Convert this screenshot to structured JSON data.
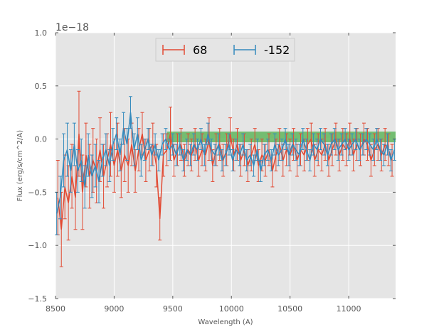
{
  "chart_data": {
    "type": "line",
    "title": "",
    "xlabel": "Wavelength (A)",
    "ylabel": "Flux (erg/s/cm^2/A)",
    "offset_text": "1e−18",
    "xlim": [
      8500,
      11400
    ],
    "ylim": [
      -1.5,
      1.0
    ],
    "scale": 1e-18,
    "grid": true,
    "legend_position": "top-center",
    "xticks": [
      8500,
      9000,
      9500,
      10000,
      10500,
      11000
    ],
    "xtick_labels": [
      "8500",
      "9000",
      "9500",
      "10000",
      "10500",
      "11000"
    ],
    "yticks": [
      -1.5,
      -1.0,
      -0.5,
      0.0,
      0.5,
      1.0
    ],
    "ytick_labels": [
      "−1.5",
      "−1.0",
      "−0.5",
      "0.0",
      "0.5",
      "1.0"
    ],
    "band": {
      "x_start": 9450,
      "x_end": 11400,
      "y_low": -0.03,
      "y_high": 0.07,
      "color": "#4daf4a"
    },
    "series": [
      {
        "name": "68",
        "color": "#e24a33",
        "x": [
          8520,
          8550,
          8580,
          8610,
          8640,
          8670,
          8700,
          8730,
          8760,
          8790,
          8820,
          8850,
          8880,
          8910,
          8940,
          8970,
          9000,
          9030,
          9060,
          9090,
          9120,
          9150,
          9180,
          9210,
          9240,
          9270,
          9300,
          9330,
          9360,
          9390,
          9420,
          9450,
          9480,
          9510,
          9540,
          9570,
          9600,
          9630,
          9660,
          9690,
          9720,
          9750,
          9780,
          9810,
          9840,
          9870,
          9900,
          9930,
          9960,
          9990,
          10020,
          10050,
          10080,
          10110,
          10140,
          10170,
          10200,
          10230,
          10260,
          10290,
          10320,
          10350,
          10380,
          10410,
          10440,
          10470,
          10500,
          10530,
          10560,
          10590,
          10620,
          10650,
          10680,
          10710,
          10740,
          10770,
          10800,
          10830,
          10860,
          10890,
          10920,
          10950,
          10980,
          11010,
          11040,
          11070,
          11100,
          11130,
          11160,
          11190,
          11220,
          11250,
          11280,
          11310,
          11340,
          11370
        ],
        "y": [
          -0.55,
          -0.85,
          -0.45,
          -0.6,
          -0.35,
          -0.55,
          0.05,
          -0.5,
          -0.15,
          -0.35,
          -0.2,
          -0.3,
          -0.1,
          -0.35,
          -0.2,
          -0.05,
          -0.25,
          -0.1,
          -0.3,
          -0.15,
          -0.25,
          -0.05,
          -0.3,
          -0.1,
          0.05,
          -0.2,
          -0.1,
          -0.05,
          -0.25,
          -0.75,
          -0.15,
          -0.1,
          0.05,
          -0.2,
          -0.1,
          -0.05,
          -0.2,
          -0.1,
          -0.15,
          -0.05,
          -0.2,
          -0.1,
          -0.15,
          0.0,
          -0.25,
          -0.1,
          -0.05,
          -0.2,
          -0.1,
          0.05,
          -0.15,
          -0.05,
          -0.2,
          -0.1,
          -0.25,
          -0.15,
          -0.05,
          -0.25,
          -0.15,
          -0.2,
          -0.1,
          -0.3,
          -0.15,
          -0.05,
          -0.2,
          -0.1,
          -0.15,
          -0.05,
          -0.2,
          -0.1,
          -0.15,
          -0.05,
          0.0,
          -0.2,
          -0.1,
          -0.15,
          -0.05,
          -0.2,
          -0.1,
          0.0,
          -0.15,
          -0.05,
          -0.1,
          0.0,
          -0.15,
          -0.05,
          -0.1,
          0.0,
          -0.05,
          -0.2,
          -0.1,
          -0.05,
          -0.15,
          -0.05,
          -0.1,
          -0.2
        ],
        "err": [
          0.35,
          0.35,
          0.3,
          0.35,
          0.3,
          0.3,
          0.4,
          0.35,
          0.3,
          0.3,
          0.3,
          0.3,
          0.3,
          0.3,
          0.25,
          0.3,
          0.25,
          0.25,
          0.25,
          0.25,
          0.25,
          0.2,
          0.2,
          0.2,
          0.2,
          0.2,
          0.2,
          0.2,
          0.2,
          0.2,
          0.2,
          0.15,
          0.25,
          0.15,
          0.15,
          0.15,
          0.15,
          0.15,
          0.15,
          0.15,
          0.15,
          0.15,
          0.15,
          0.2,
          0.15,
          0.15,
          0.15,
          0.15,
          0.15,
          0.15,
          0.15,
          0.15,
          0.15,
          0.15,
          0.15,
          0.15,
          0.15,
          0.15,
          0.15,
          0.15,
          0.15,
          0.15,
          0.15,
          0.15,
          0.15,
          0.15,
          0.15,
          0.15,
          0.15,
          0.15,
          0.15,
          0.15,
          0.15,
          0.15,
          0.15,
          0.15,
          0.15,
          0.15,
          0.15,
          0.15,
          0.15,
          0.15,
          0.15,
          0.15,
          0.15,
          0.15,
          0.15,
          0.15,
          0.15,
          0.15,
          0.15,
          0.15,
          0.15,
          0.15,
          0.15,
          0.15
        ]
      },
      {
        "name": "-152",
        "color": "#348abd",
        "x": [
          8510,
          8540,
          8570,
          8600,
          8630,
          8660,
          8690,
          8720,
          8750,
          8780,
          8810,
          8840,
          8870,
          8900,
          8930,
          8960,
          8990,
          9020,
          9050,
          9080,
          9110,
          9140,
          9170,
          9200,
          9230,
          9260,
          9290,
          9320,
          9350,
          9380,
          9410,
          9440,
          9470,
          9500,
          9530,
          9560,
          9590,
          9620,
          9650,
          9680,
          9710,
          9740,
          9770,
          9800,
          9830,
          9860,
          9890,
          9920,
          9950,
          9980,
          10010,
          10040,
          10070,
          10100,
          10130,
          10160,
          10190,
          10220,
          10250,
          10280,
          10310,
          10340,
          10370,
          10400,
          10430,
          10460,
          10490,
          10520,
          10550,
          10580,
          10610,
          10640,
          10670,
          10700,
          10730,
          10760,
          10790,
          10820,
          10850,
          10880,
          10910,
          10940,
          10970,
          11000,
          11030,
          11060,
          11090,
          11120,
          11150,
          11180,
          11210,
          11240,
          11270,
          11300,
          11330,
          11360,
          11390
        ],
        "y": [
          -0.7,
          -0.55,
          -0.2,
          -0.1,
          -0.3,
          -0.05,
          -0.3,
          -0.2,
          -0.45,
          -0.15,
          -0.35,
          -0.25,
          -0.4,
          -0.2,
          -0.1,
          -0.25,
          -0.05,
          0.05,
          -0.15,
          0.1,
          -0.05,
          0.25,
          -0.1,
          0.05,
          -0.2,
          -0.1,
          0.0,
          -0.15,
          -0.05,
          -0.2,
          -0.05,
          0.0,
          -0.1,
          -0.05,
          -0.15,
          -0.05,
          -0.2,
          -0.1,
          -0.15,
          -0.05,
          -0.1,
          0.0,
          -0.15,
          0.05,
          -0.1,
          -0.15,
          -0.05,
          -0.2,
          -0.15,
          -0.05,
          -0.2,
          -0.1,
          -0.15,
          -0.05,
          -0.2,
          -0.15,
          -0.25,
          -0.1,
          -0.3,
          -0.15,
          -0.1,
          -0.2,
          -0.05,
          -0.15,
          -0.1,
          0.0,
          -0.15,
          -0.05,
          -0.1,
          -0.15,
          0.0,
          -0.1,
          -0.2,
          -0.05,
          -0.1,
          0.0,
          -0.05,
          -0.15,
          -0.05,
          0.0,
          -0.1,
          -0.05,
          0.0,
          -0.1,
          -0.05,
          0.0,
          -0.1,
          -0.05,
          0.0,
          -0.05,
          -0.1,
          0.0,
          -0.1,
          -0.15,
          -0.05,
          -0.2,
          -0.1
        ],
        "err": [
          0.2,
          0.2,
          0.25,
          0.25,
          0.2,
          0.2,
          0.2,
          0.2,
          0.2,
          0.2,
          0.2,
          0.2,
          0.2,
          0.15,
          0.15,
          0.15,
          0.15,
          0.15,
          0.15,
          0.15,
          0.15,
          0.15,
          0.15,
          0.15,
          0.15,
          0.1,
          0.1,
          0.1,
          0.1,
          0.1,
          0.1,
          0.1,
          0.1,
          0.1,
          0.1,
          0.1,
          0.1,
          0.1,
          0.1,
          0.1,
          0.1,
          0.1,
          0.1,
          0.1,
          0.1,
          0.1,
          0.1,
          0.1,
          0.1,
          0.1,
          0.1,
          0.1,
          0.1,
          0.1,
          0.1,
          0.1,
          0.1,
          0.1,
          0.1,
          0.1,
          0.1,
          0.1,
          0.1,
          0.1,
          0.1,
          0.1,
          0.1,
          0.1,
          0.1,
          0.1,
          0.1,
          0.1,
          0.1,
          0.1,
          0.1,
          0.1,
          0.1,
          0.1,
          0.1,
          0.1,
          0.1,
          0.1,
          0.1,
          0.1,
          0.1,
          0.1,
          0.1,
          0.1,
          0.1,
          0.1,
          0.1,
          0.1,
          0.1,
          0.1,
          0.1,
          0.1,
          0.1
        ]
      }
    ]
  }
}
